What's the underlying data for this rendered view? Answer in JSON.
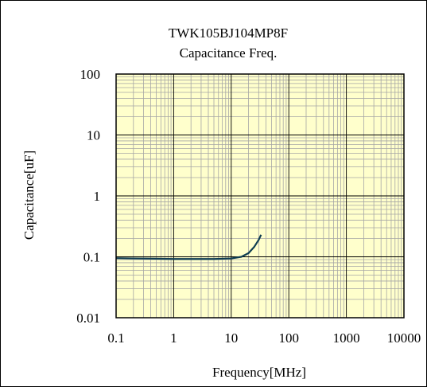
{
  "chart_data": {
    "type": "line",
    "title": "TWK105BJ104MP8F",
    "subtitle": "Capacitance Freq.",
    "xlabel": "Frequency[MHz]",
    "ylabel": "Capacitance[uF]",
    "xscale": "log",
    "yscale": "log",
    "xlim": [
      0.1,
      10000
    ],
    "ylim": [
      0.01,
      100
    ],
    "grid": true,
    "x_ticks": [
      "0.1",
      "1",
      "10",
      "100",
      "1000",
      "10000"
    ],
    "y_ticks": [
      "100",
      "10",
      "1",
      "0.1",
      "0.01"
    ],
    "colors": {
      "plot_background": "#ffffcc",
      "minor_grid": "#a6a6a6",
      "major_grid": "#000000",
      "line": "#0f3d52"
    },
    "series": [
      {
        "x": [
          0.1,
          0.2,
          0.5,
          1,
          2,
          5,
          10,
          15,
          20,
          25,
          30,
          33
        ],
        "y": [
          0.095,
          0.094,
          0.093,
          0.092,
          0.092,
          0.092,
          0.094,
          0.1,
          0.115,
          0.145,
          0.19,
          0.23
        ]
      }
    ]
  }
}
